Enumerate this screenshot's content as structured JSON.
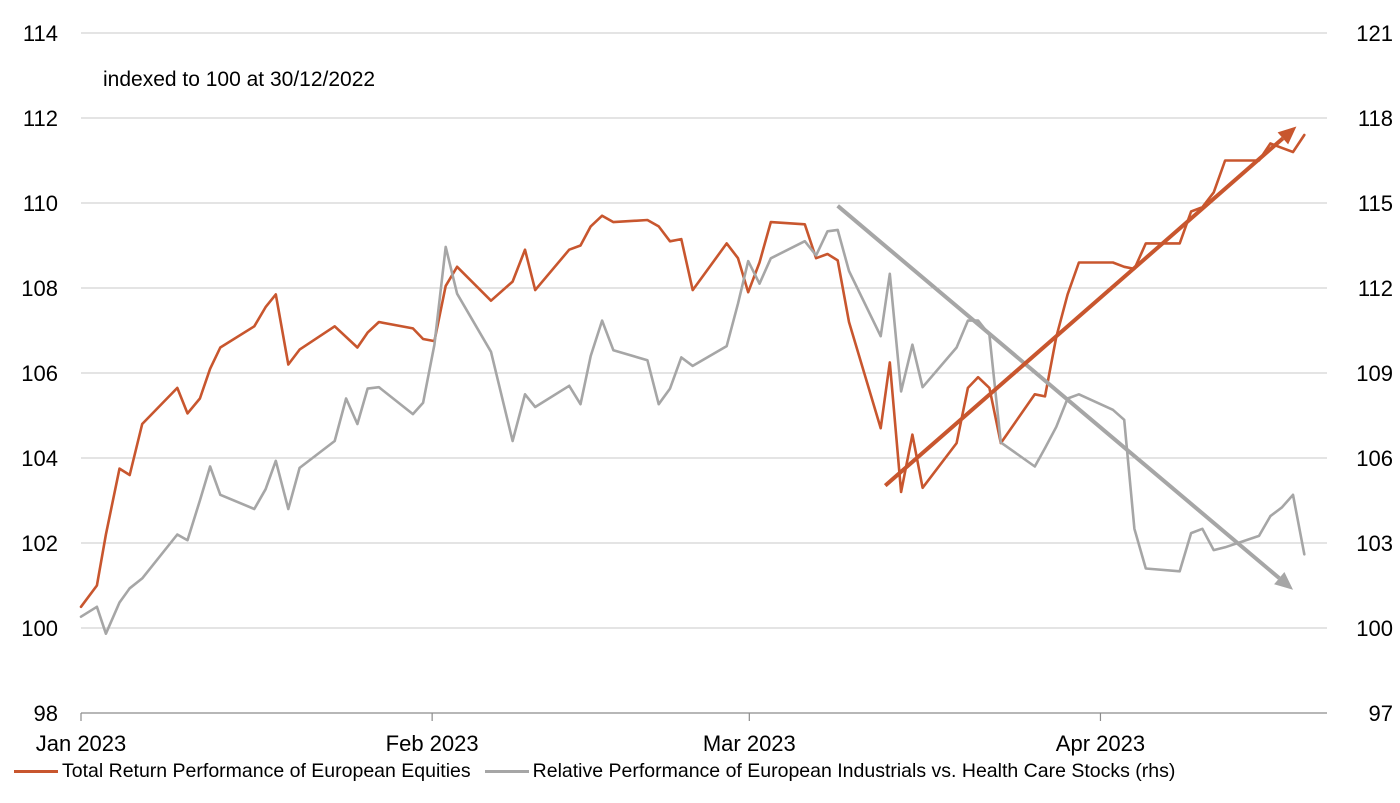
{
  "chart_data": {
    "type": "line",
    "annotation": "indexed to 100 at 30/12/2022",
    "x_tick_labels": [
      "Jan 2023",
      "Feb 2023",
      "Mar 2023",
      "Apr 2023"
    ],
    "x_tick_days": [
      0,
      31,
      59,
      90
    ],
    "x_range_days": [
      0,
      110
    ],
    "y_left": {
      "min": 98,
      "max": 114,
      "ticks": [
        98,
        100,
        102,
        104,
        106,
        108,
        110,
        112,
        114
      ]
    },
    "y_right": {
      "min": 97,
      "max": 121,
      "ticks": [
        97,
        100,
        103,
        106,
        109,
        112,
        115,
        118,
        121
      ]
    },
    "grid": true,
    "legend_position": "bottom",
    "colors": {
      "equities": "#c8562e",
      "relative": "#a6a6a6"
    },
    "series": [
      {
        "name": "Total Return Performance of European Equities",
        "axis": "left",
        "color": "#c8562e",
        "points": [
          [
            0,
            100.5
          ],
          [
            1.4,
            101.0
          ],
          [
            2.2,
            102.2
          ],
          [
            3.4,
            103.75
          ],
          [
            4.3,
            103.6
          ],
          [
            5.4,
            104.8
          ],
          [
            8.5,
            105.65
          ],
          [
            9.4,
            105.05
          ],
          [
            10.5,
            105.4
          ],
          [
            11.4,
            106.1
          ],
          [
            12.3,
            106.6
          ],
          [
            15.3,
            107.1
          ],
          [
            16.3,
            107.55
          ],
          [
            17.2,
            107.85
          ],
          [
            18.3,
            106.2
          ],
          [
            19.3,
            106.55
          ],
          [
            22.4,
            107.1
          ],
          [
            24.4,
            106.6
          ],
          [
            25.3,
            106.95
          ],
          [
            26.3,
            107.2
          ],
          [
            29.3,
            107.05
          ],
          [
            30.2,
            106.8
          ],
          [
            31.2,
            106.75
          ],
          [
            32.2,
            108.05
          ],
          [
            33.2,
            108.5
          ],
          [
            36.2,
            107.7
          ],
          [
            38.1,
            108.15
          ],
          [
            39.2,
            108.9
          ],
          [
            40.1,
            107.95
          ],
          [
            43.1,
            108.9
          ],
          [
            44.1,
            109.0
          ],
          [
            45.0,
            109.45
          ],
          [
            46.0,
            109.7
          ],
          [
            47.0,
            109.55
          ],
          [
            50.0,
            109.6
          ],
          [
            51.0,
            109.45
          ],
          [
            52.0,
            109.1
          ],
          [
            53.0,
            109.15
          ],
          [
            54.0,
            107.95
          ],
          [
            57.0,
            109.05
          ],
          [
            58.0,
            108.7
          ],
          [
            58.9,
            107.9
          ],
          [
            59.9,
            108.6
          ],
          [
            60.9,
            109.55
          ],
          [
            63.9,
            109.5
          ],
          [
            64.9,
            108.7
          ],
          [
            65.9,
            108.8
          ],
          [
            66.8,
            108.65
          ],
          [
            67.8,
            107.2
          ],
          [
            70.6,
            104.7
          ],
          [
            71.4,
            106.25
          ],
          [
            72.4,
            103.2
          ],
          [
            73.4,
            104.55
          ],
          [
            74.3,
            103.3
          ],
          [
            77.3,
            104.35
          ],
          [
            78.3,
            105.65
          ],
          [
            79.2,
            105.9
          ],
          [
            80.2,
            105.65
          ],
          [
            81.2,
            104.35
          ],
          [
            84.2,
            105.5
          ],
          [
            85.1,
            105.45
          ],
          [
            86.1,
            106.85
          ],
          [
            87.1,
            107.85
          ],
          [
            88.1,
            108.6
          ],
          [
            91.1,
            108.6
          ],
          [
            92.1,
            108.5
          ],
          [
            93.0,
            108.45
          ],
          [
            94.0,
            109.05
          ],
          [
            97.0,
            109.05
          ],
          [
            98.0,
            109.8
          ],
          [
            99.0,
            109.9
          ],
          [
            100.0,
            110.25
          ],
          [
            101.0,
            111.0
          ],
          [
            104.0,
            111.0
          ],
          [
            105.0,
            111.4
          ],
          [
            106.0,
            111.3
          ],
          [
            107.0,
            111.2
          ],
          [
            108.0,
            111.6
          ]
        ]
      },
      {
        "name": "Relative Performance of European Industrials vs. Health Care Stocks (rhs)",
        "axis": "right",
        "color": "#a6a6a6",
        "points": [
          [
            0,
            100.4
          ],
          [
            1.4,
            100.75
          ],
          [
            2.2,
            99.8
          ],
          [
            3.4,
            100.9
          ],
          [
            4.3,
            101.4
          ],
          [
            5.4,
            101.75
          ],
          [
            8.5,
            103.3
          ],
          [
            9.4,
            103.1
          ],
          [
            10.5,
            104.5
          ],
          [
            11.4,
            105.7
          ],
          [
            12.3,
            104.7
          ],
          [
            15.3,
            104.2
          ],
          [
            16.3,
            104.9
          ],
          [
            17.2,
            105.9
          ],
          [
            18.3,
            104.2
          ],
          [
            19.3,
            105.65
          ],
          [
            22.4,
            106.6
          ],
          [
            23.4,
            108.1
          ],
          [
            24.4,
            107.2
          ],
          [
            25.3,
            108.45
          ],
          [
            26.3,
            108.5
          ],
          [
            29.3,
            107.55
          ],
          [
            30.2,
            107.95
          ],
          [
            31.2,
            110.0
          ],
          [
            32.2,
            113.45
          ],
          [
            33.2,
            111.8
          ],
          [
            36.2,
            109.75
          ],
          [
            38.1,
            106.6
          ],
          [
            39.2,
            108.25
          ],
          [
            40.1,
            107.8
          ],
          [
            43.1,
            108.55
          ],
          [
            44.1,
            107.9
          ],
          [
            45.0,
            109.6
          ],
          [
            46.0,
            110.85
          ],
          [
            47.0,
            109.8
          ],
          [
            50.0,
            109.45
          ],
          [
            51.0,
            107.9
          ],
          [
            52.0,
            108.45
          ],
          [
            53.0,
            109.55
          ],
          [
            54.0,
            109.25
          ],
          [
            57.0,
            109.95
          ],
          [
            58.0,
            111.45
          ],
          [
            58.9,
            112.95
          ],
          [
            59.9,
            112.15
          ],
          [
            60.9,
            113.05
          ],
          [
            63.9,
            113.65
          ],
          [
            64.9,
            113.15
          ],
          [
            65.9,
            114.0
          ],
          [
            66.8,
            114.05
          ],
          [
            67.8,
            112.6
          ],
          [
            70.6,
            110.3
          ],
          [
            71.4,
            112.5
          ],
          [
            72.4,
            108.35
          ],
          [
            73.4,
            110.0
          ],
          [
            74.3,
            108.5
          ],
          [
            77.3,
            109.9
          ],
          [
            78.3,
            110.85
          ],
          [
            79.2,
            110.85
          ],
          [
            80.2,
            110.35
          ],
          [
            81.2,
            106.55
          ],
          [
            84.2,
            105.7
          ],
          [
            85.1,
            106.35
          ],
          [
            86.1,
            107.1
          ],
          [
            87.1,
            108.1
          ],
          [
            88.1,
            108.25
          ],
          [
            91.1,
            107.7
          ],
          [
            92.1,
            107.35
          ],
          [
            93.0,
            103.5
          ],
          [
            94.0,
            102.1
          ],
          [
            97.0,
            102.0
          ],
          [
            98.0,
            103.35
          ],
          [
            99.0,
            103.5
          ],
          [
            100.0,
            102.75
          ],
          [
            101.0,
            102.85
          ],
          [
            104.0,
            103.25
          ],
          [
            105.0,
            103.95
          ],
          [
            106.0,
            104.25
          ],
          [
            107.0,
            104.7
          ],
          [
            108.0,
            102.6
          ]
        ]
      }
    ],
    "trend_arrows": [
      {
        "color": "#c8562e",
        "axis": "left",
        "from": [
          71.0,
          103.35
        ],
        "to": [
          107.3,
          111.8
        ]
      },
      {
        "color": "#a6a6a6",
        "axis": "right",
        "from": [
          66.8,
          114.9
        ],
        "to": [
          107.0,
          101.35
        ]
      }
    ]
  }
}
